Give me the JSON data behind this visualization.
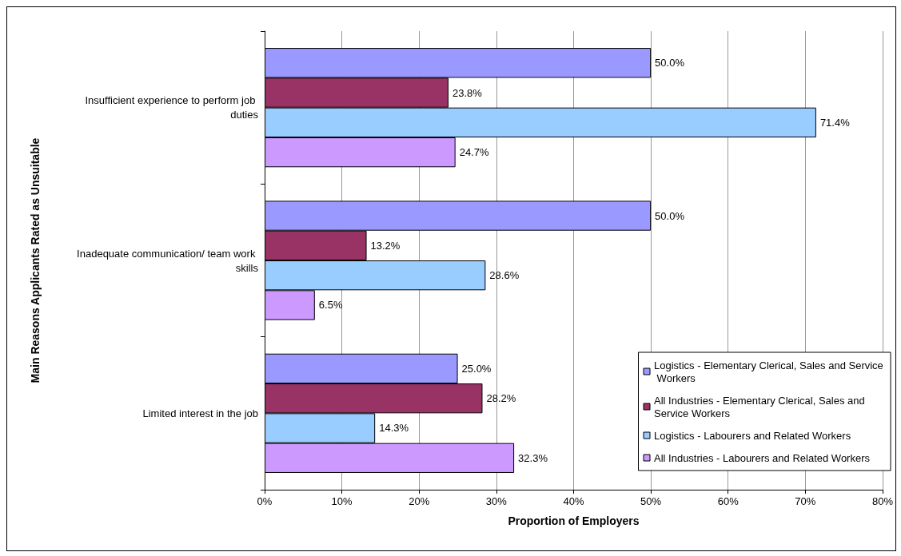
{
  "chart_data": {
    "type": "bar",
    "orientation": "horizontal",
    "xlabel": "Proportion of Employers",
    "ylabel": "Main Reasons Applicants Rated as Unsuitable",
    "categories": [
      "Insufficient experience to perform job duties",
      "Inadequate communication/ team work skills",
      "Limited interest in the job"
    ],
    "series": [
      {
        "name": "Logistics - Elementary Clerical, Sales and Service Workers",
        "color": "#9999ff",
        "values": [
          50.0,
          50.0,
          25.0
        ],
        "value_labels": [
          "50.0%",
          "50.0%",
          "25.0%"
        ]
      },
      {
        "name": "All Industries - Elementary Clerical, Sales and Service Workers",
        "color": "#993366",
        "values": [
          23.8,
          13.2,
          28.2
        ],
        "value_labels": [
          "23.8%",
          "13.2%",
          "28.2%"
        ]
      },
      {
        "name": "Logistics - Labourers and Related Workers",
        "color": "#99ccff",
        "values": [
          71.4,
          28.6,
          14.3
        ],
        "value_labels": [
          "71.4%",
          "28.6%",
          "14.3%"
        ]
      },
      {
        "name": "All Industries - Labourers and Related Workers",
        "color": "#cc99ff",
        "values": [
          24.7,
          6.5,
          32.3
        ],
        "value_labels": [
          "24.7%",
          "6.5%",
          "32.3%"
        ]
      }
    ],
    "xlim": [
      0,
      80
    ],
    "xticks": [
      {
        "value": 0,
        "label": "0%"
      },
      {
        "value": 10,
        "label": "10%"
      },
      {
        "value": 20,
        "label": "20%"
      },
      {
        "value": 30,
        "label": "30%"
      },
      {
        "value": 40,
        "label": "40%"
      },
      {
        "value": 50,
        "label": "50%"
      },
      {
        "value": 60,
        "label": "60%"
      },
      {
        "value": 70,
        "label": "70%"
      },
      {
        "value": 80,
        "label": "80%"
      }
    ],
    "grid": "x",
    "legend": "bottom right"
  }
}
